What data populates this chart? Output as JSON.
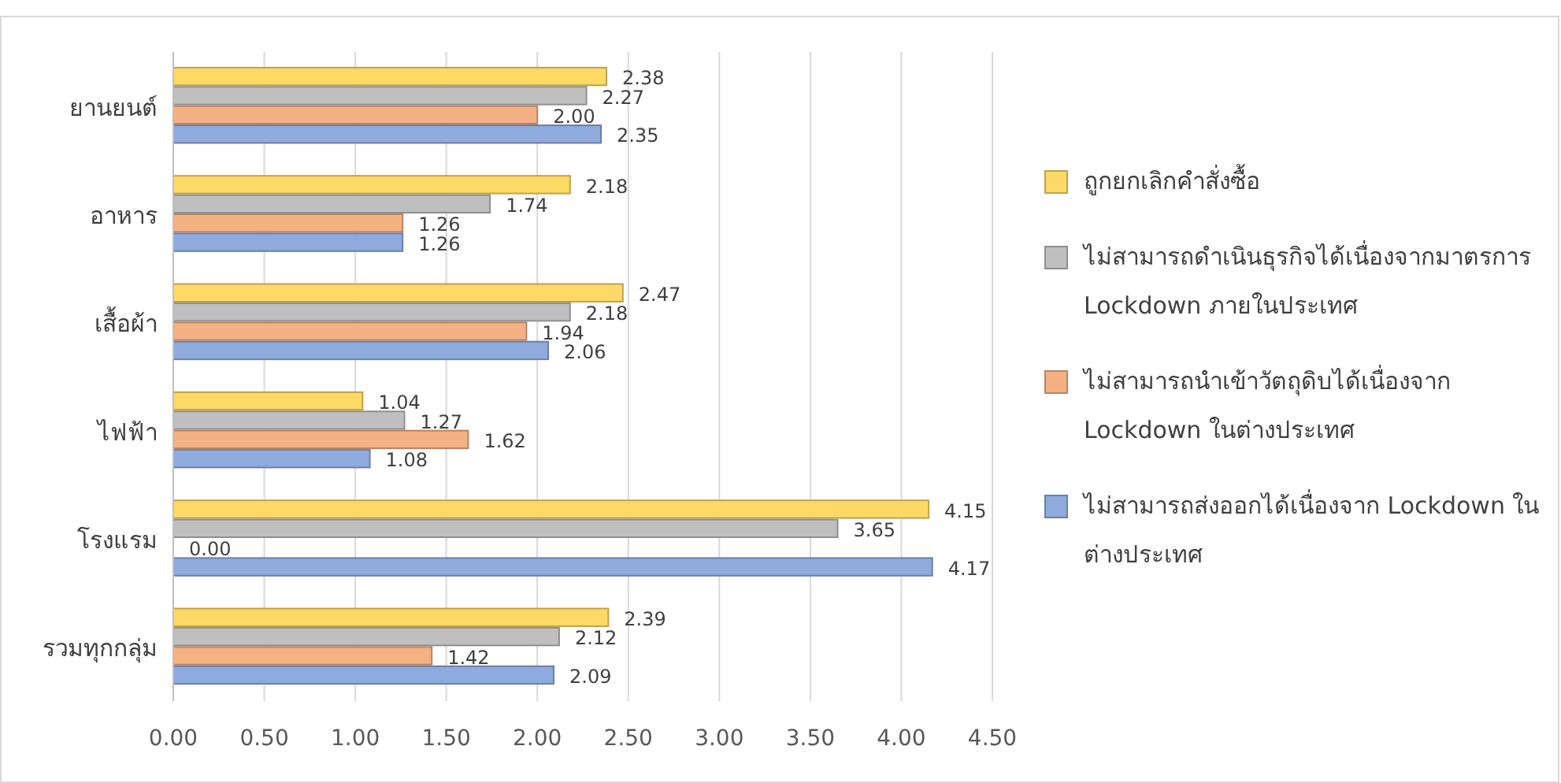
{
  "chart_data": {
    "type": "bar",
    "orientation": "horizontal",
    "categories": [
      "ยานยนต์",
      "อาหาร",
      "เสื้อผ้า",
      "ไฟฟ้า",
      "โรงแรม",
      "รวมทุกกลุ่ม"
    ],
    "series": [
      {
        "name": "ถูกยกเลิกคำสั่งซื้อ",
        "color": "#ffd966",
        "values": [
          2.38,
          2.18,
          2.47,
          1.04,
          4.15,
          2.39
        ],
        "value_labels": [
          "2.38",
          "2.18",
          "2.47",
          "1.04",
          "4.15",
          "2.39"
        ]
      },
      {
        "name": "ไม่สามารถดำเนินธุรกิจได้เนื่องจากมาตรการ Lockdown  ภายในประเทศ",
        "color": "#bfbfbf",
        "values": [
          2.27,
          1.74,
          2.18,
          1.27,
          3.65,
          2.12
        ],
        "value_labels": [
          "2.27",
          "1.74",
          "2.18",
          "1.27",
          "3.65",
          "2.12"
        ]
      },
      {
        "name": "ไม่สามารถนำเข้าวัตถุดิบได้เนื่องจาก Lockdown ในต่างประเทศ",
        "color": "#f4b183",
        "values": [
          2.0,
          1.26,
          1.94,
          1.62,
          0.0,
          1.42
        ],
        "value_labels": [
          "2.00",
          "1.26",
          "1.94",
          "1.62",
          "0.00",
          "1.42"
        ]
      },
      {
        "name": "ไม่สามารถส่งออกได้เนื่องจาก Lockdown ในต่างประเทศ",
        "color": "#8faadc",
        "values": [
          2.35,
          1.26,
          2.06,
          1.08,
          4.17,
          2.09
        ],
        "value_labels": [
          "2.35",
          "1.26",
          "2.06",
          "1.08",
          "4.17",
          "2.09"
        ]
      }
    ],
    "xlim": [
      0,
      4.5
    ],
    "xticks": [
      {
        "value": 0,
        "label": "0.00"
      },
      {
        "value": 0.5,
        "label": "0.50"
      },
      {
        "value": 1,
        "label": "1.00"
      },
      {
        "value": 1.5,
        "label": "1.50"
      },
      {
        "value": 2,
        "label": "2.00"
      },
      {
        "value": 2.5,
        "label": "2.50"
      },
      {
        "value": 3,
        "label": "3.00"
      },
      {
        "value": 3.5,
        "label": "3.50"
      },
      {
        "value": 4,
        "label": "4.00"
      },
      {
        "value": 4.5,
        "label": "4.50"
      }
    ],
    "grid": "x",
    "legend": "right"
  }
}
